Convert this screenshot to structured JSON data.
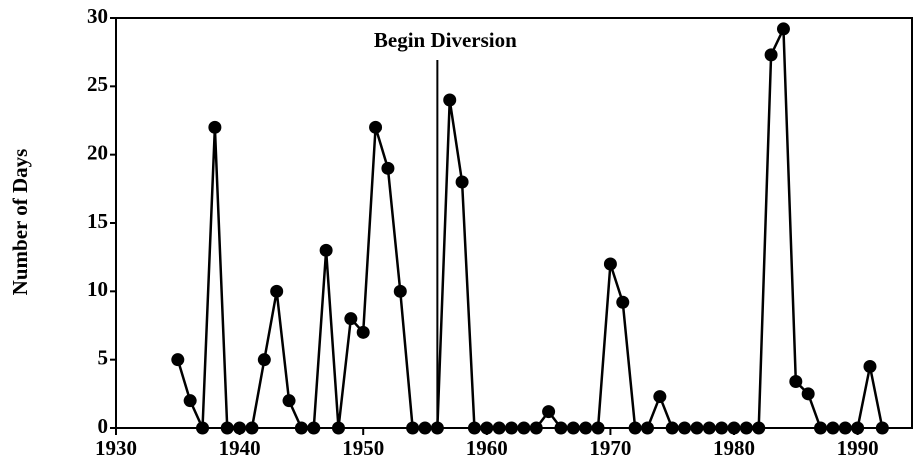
{
  "chart_data": {
    "type": "line",
    "ylabel": "Number of Days",
    "x": [
      1935,
      1936,
      1937,
      1938,
      1939,
      1940,
      1941,
      1942,
      1943,
      1944,
      1945,
      1946,
      1947,
      1948,
      1949,
      1950,
      1951,
      1952,
      1953,
      1954,
      1955,
      1956,
      1957,
      1958,
      1959,
      1960,
      1961,
      1962,
      1963,
      1964,
      1965,
      1966,
      1967,
      1968,
      1969,
      1970,
      1971,
      1972,
      1973,
      1974,
      1975,
      1976,
      1977,
      1978,
      1979,
      1980,
      1981,
      1982,
      1983,
      1984,
      1985,
      1986,
      1987,
      1988,
      1989,
      1990,
      1991,
      1992
    ],
    "values": [
      5,
      2,
      0,
      22,
      0,
      0,
      0,
      5,
      10,
      2,
      0,
      0,
      13,
      0,
      8,
      7,
      22,
      19,
      10,
      0,
      0,
      0,
      24,
      18,
      0,
      0,
      0,
      0,
      0,
      0,
      1.2,
      0,
      0,
      0,
      0,
      12,
      9.2,
      0,
      0,
      2.3,
      0,
      0,
      0,
      0,
      0,
      0,
      0,
      0,
      27.3,
      29.2,
      3.4,
      2.5,
      0,
      0,
      0,
      0,
      4.5,
      0
    ],
    "color": "#000000",
    "xlim": [
      1930,
      1994.4
    ],
    "xticks": [
      1930,
      1940,
      1950,
      1960,
      1970,
      1980,
      1990
    ],
    "ylim": [
      0,
      30
    ],
    "yticks": [
      0,
      5,
      10,
      15,
      20,
      25,
      30
    ],
    "annotation": {
      "text": "Begin Diversion",
      "x": 1956
    }
  }
}
